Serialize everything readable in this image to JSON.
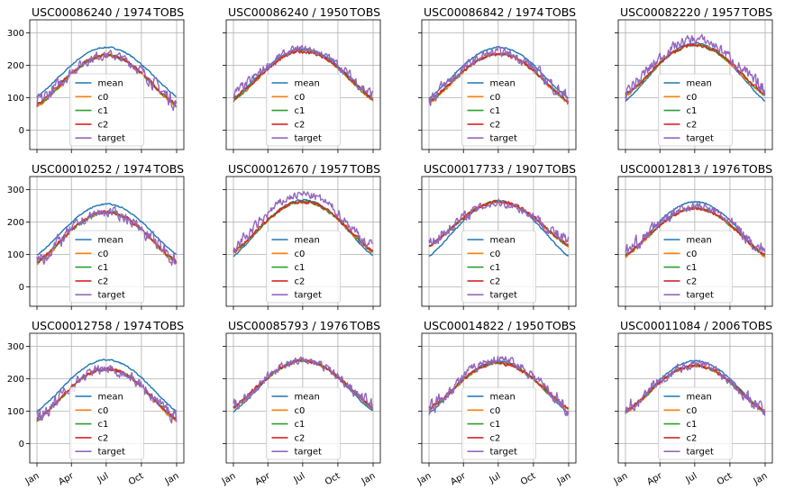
{
  "figure": {
    "rows": 3,
    "cols": 4,
    "legend_location": "lower center",
    "grid": true,
    "sharex": true,
    "sharey": true
  },
  "chart_data": [
    {
      "type": "line",
      "station": "USC00086240",
      "year": "1974",
      "element": "TOBS",
      "x_ticks": [
        "Jan",
        "Apr",
        "Jul",
        "Oct",
        "Jan"
      ],
      "yticks": [
        "0",
        "100",
        "200",
        "300"
      ],
      "ylim": [
        -60,
        340
      ],
      "legend": [
        "mean",
        "c0",
        "c1",
        "c2",
        "target"
      ],
      "series": [
        {
          "name": "mean",
          "color": "#1f77b4",
          "peak": 255,
          "trough": 95,
          "noise": 3
        },
        {
          "name": "c0",
          "color": "#ff7f0e",
          "peak": 230,
          "trough": 62,
          "noise": 7
        },
        {
          "name": "c1",
          "color": "#2ca02c",
          "peak": 230,
          "trough": 65,
          "noise": 7
        },
        {
          "name": "c2",
          "color": "#d62728",
          "peak": 230,
          "trough": 68,
          "noise": 8
        },
        {
          "name": "target",
          "color": "#9467bd",
          "peak": 232,
          "trough": 75,
          "noise": 40
        }
      ]
    },
    {
      "type": "line",
      "station": "USC00086240",
      "year": "1950",
      "element": "TOBS",
      "x_ticks": [
        "Jan",
        "Apr",
        "Jul",
        "Oct",
        "Jan"
      ],
      "yticks": [
        "0",
        "100",
        "200",
        "300"
      ],
      "ylim": [
        -60,
        340
      ],
      "legend": [
        "mean",
        "c0",
        "c1",
        "c2",
        "target"
      ],
      "series": [
        {
          "name": "mean",
          "color": "#1f77b4",
          "peak": 250,
          "trough": 90,
          "noise": 3
        },
        {
          "name": "c0",
          "color": "#ff7f0e",
          "peak": 245,
          "trough": 80,
          "noise": 6
        },
        {
          "name": "c1",
          "color": "#2ca02c",
          "peak": 245,
          "trough": 85,
          "noise": 6
        },
        {
          "name": "c2",
          "color": "#d62728",
          "peak": 242,
          "trough": 88,
          "noise": 8
        },
        {
          "name": "target",
          "color": "#9467bd",
          "peak": 250,
          "trough": 100,
          "noise": 32
        }
      ]
    },
    {
      "type": "line",
      "station": "USC00086842",
      "year": "1974",
      "element": "TOBS",
      "x_ticks": [
        "Jan",
        "Apr",
        "Jul",
        "Oct",
        "Jan"
      ],
      "yticks": [
        "0",
        "100",
        "200",
        "300"
      ],
      "ylim": [
        -60,
        340
      ],
      "legend": [
        "mean",
        "c0",
        "c1",
        "c2",
        "target"
      ],
      "series": [
        {
          "name": "mean",
          "color": "#1f77b4",
          "peak": 255,
          "trough": 90,
          "noise": 3
        },
        {
          "name": "c0",
          "color": "#ff7f0e",
          "peak": 235,
          "trough": 75,
          "noise": 6
        },
        {
          "name": "c1",
          "color": "#2ca02c",
          "peak": 235,
          "trough": 78,
          "noise": 6
        },
        {
          "name": "c2",
          "color": "#d62728",
          "peak": 235,
          "trough": 80,
          "noise": 8
        },
        {
          "name": "target",
          "color": "#9467bd",
          "peak": 240,
          "trough": 90,
          "noise": 38
        }
      ]
    },
    {
      "type": "line",
      "station": "USC00082220",
      "year": "1957",
      "element": "TOBS",
      "x_ticks": [
        "Jan",
        "Apr",
        "Jul",
        "Oct",
        "Jan"
      ],
      "yticks": [
        "0",
        "100",
        "200",
        "300"
      ],
      "ylim": [
        -60,
        340
      ],
      "legend": [
        "mean",
        "c0",
        "c1",
        "c2",
        "target"
      ],
      "series": [
        {
          "name": "mean",
          "color": "#1f77b4",
          "peak": 268,
          "trough": 80,
          "noise": 3
        },
        {
          "name": "c0",
          "color": "#ff7f0e",
          "peak": 262,
          "trough": 95,
          "noise": 6
        },
        {
          "name": "c1",
          "color": "#2ca02c",
          "peak": 262,
          "trough": 98,
          "noise": 6
        },
        {
          "name": "c2",
          "color": "#d62728",
          "peak": 262,
          "trough": 100,
          "noise": 8
        },
        {
          "name": "target",
          "color": "#9467bd",
          "peak": 280,
          "trough": 110,
          "noise": 40
        }
      ]
    },
    {
      "type": "line",
      "station": "USC00010252",
      "year": "1974",
      "element": "TOBS",
      "x_ticks": [
        "Jan",
        "Apr",
        "Jul",
        "Oct",
        "Jan"
      ],
      "yticks": [
        "0",
        "100",
        "200",
        "300"
      ],
      "ylim": [
        -60,
        340
      ],
      "legend": [
        "mean",
        "c0",
        "c1",
        "c2",
        "target"
      ],
      "series": [
        {
          "name": "mean",
          "color": "#1f77b4",
          "peak": 255,
          "trough": 90,
          "noise": 3
        },
        {
          "name": "c0",
          "color": "#ff7f0e",
          "peak": 230,
          "trough": 62,
          "noise": 7
        },
        {
          "name": "c1",
          "color": "#2ca02c",
          "peak": 230,
          "trough": 65,
          "noise": 7
        },
        {
          "name": "c2",
          "color": "#d62728",
          "peak": 230,
          "trough": 68,
          "noise": 8
        },
        {
          "name": "target",
          "color": "#9467bd",
          "peak": 230,
          "trough": 70,
          "noise": 42
        }
      ]
    },
    {
      "type": "line",
      "station": "USC00012670",
      "year": "1957",
      "element": "TOBS",
      "x_ticks": [
        "Jan",
        "Apr",
        "Jul",
        "Oct",
        "Jan"
      ],
      "yticks": [
        "0",
        "100",
        "200",
        "300"
      ],
      "ylim": [
        -60,
        340
      ],
      "legend": [
        "mean",
        "c0",
        "c1",
        "c2",
        "target"
      ],
      "series": [
        {
          "name": "mean",
          "color": "#1f77b4",
          "peak": 268,
          "trough": 85,
          "noise": 3
        },
        {
          "name": "c0",
          "color": "#ff7f0e",
          "peak": 262,
          "trough": 95,
          "noise": 6
        },
        {
          "name": "c1",
          "color": "#2ca02c",
          "peak": 262,
          "trough": 98,
          "noise": 6
        },
        {
          "name": "c2",
          "color": "#d62728",
          "peak": 262,
          "trough": 100,
          "noise": 8
        },
        {
          "name": "target",
          "color": "#9467bd",
          "peak": 285,
          "trough": 110,
          "noise": 34
        }
      ]
    },
    {
      "type": "line",
      "station": "USC00017733",
      "year": "1907",
      "element": "TOBS",
      "x_ticks": [
        "Jan",
        "Apr",
        "Jul",
        "Oct",
        "Jan"
      ],
      "yticks": [
        "0",
        "100",
        "200",
        "300"
      ],
      "ylim": [
        -60,
        340
      ],
      "legend": [
        "mean",
        "c0",
        "c1",
        "c2",
        "target"
      ],
      "series": [
        {
          "name": "mean",
          "color": "#1f77b4",
          "peak": 265,
          "trough": 85,
          "noise": 3
        },
        {
          "name": "c0",
          "color": "#ff7f0e",
          "peak": 262,
          "trough": 115,
          "noise": 6
        },
        {
          "name": "c1",
          "color": "#2ca02c",
          "peak": 262,
          "trough": 118,
          "noise": 6
        },
        {
          "name": "c2",
          "color": "#d62728",
          "peak": 262,
          "trough": 120,
          "noise": 8
        },
        {
          "name": "target",
          "color": "#9467bd",
          "peak": 258,
          "trough": 130,
          "noise": 36
        }
      ]
    },
    {
      "type": "line",
      "station": "USC00012813",
      "year": "1976",
      "element": "TOBS",
      "x_ticks": [
        "Jan",
        "Apr",
        "Jul",
        "Oct",
        "Jan"
      ],
      "yticks": [
        "0",
        "100",
        "200",
        "300"
      ],
      "ylim": [
        -60,
        340
      ],
      "legend": [
        "mean",
        "c0",
        "c1",
        "c2",
        "target"
      ],
      "series": [
        {
          "name": "mean",
          "color": "#1f77b4",
          "peak": 262,
          "trough": 85,
          "noise": 3
        },
        {
          "name": "c0",
          "color": "#ff7f0e",
          "peak": 242,
          "trough": 85,
          "noise": 6
        },
        {
          "name": "c1",
          "color": "#2ca02c",
          "peak": 242,
          "trough": 88,
          "noise": 6
        },
        {
          "name": "c2",
          "color": "#d62728",
          "peak": 242,
          "trough": 90,
          "noise": 8
        },
        {
          "name": "target",
          "color": "#9467bd",
          "peak": 248,
          "trough": 100,
          "noise": 38
        }
      ]
    },
    {
      "type": "line",
      "station": "USC00012758",
      "year": "1974",
      "element": "TOBS",
      "x_ticks": [
        "Jan",
        "Apr",
        "Jul",
        "Oct",
        "Jan"
      ],
      "yticks": [
        "0",
        "100",
        "200",
        "300"
      ],
      "ylim": [
        -60,
        340
      ],
      "legend": [
        "mean",
        "c0",
        "c1",
        "c2",
        "target"
      ],
      "series": [
        {
          "name": "mean",
          "color": "#1f77b4",
          "peak": 258,
          "trough": 90,
          "noise": 3
        },
        {
          "name": "c0",
          "color": "#ff7f0e",
          "peak": 230,
          "trough": 60,
          "noise": 7
        },
        {
          "name": "c1",
          "color": "#2ca02c",
          "peak": 230,
          "trough": 63,
          "noise": 7
        },
        {
          "name": "c2",
          "color": "#d62728",
          "peak": 230,
          "trough": 66,
          "noise": 8
        },
        {
          "name": "target",
          "color": "#9467bd",
          "peak": 230,
          "trough": 70,
          "noise": 42
        }
      ]
    },
    {
      "type": "line",
      "station": "USC00085793",
      "year": "1976",
      "element": "TOBS",
      "x_ticks": [
        "Jan",
        "Apr",
        "Jul",
        "Oct",
        "Jan"
      ],
      "yticks": [
        "0",
        "100",
        "200",
        "300"
      ],
      "ylim": [
        -60,
        340
      ],
      "legend": [
        "mean",
        "c0",
        "c1",
        "c2",
        "target"
      ],
      "series": [
        {
          "name": "mean",
          "color": "#1f77b4",
          "peak": 258,
          "trough": 90,
          "noise": 3
        },
        {
          "name": "c0",
          "color": "#ff7f0e",
          "peak": 255,
          "trough": 100,
          "noise": 6
        },
        {
          "name": "c1",
          "color": "#2ca02c",
          "peak": 255,
          "trough": 103,
          "noise": 6
        },
        {
          "name": "c2",
          "color": "#d62728",
          "peak": 255,
          "trough": 105,
          "noise": 8
        },
        {
          "name": "target",
          "color": "#9467bd",
          "peak": 255,
          "trough": 110,
          "noise": 32
        }
      ]
    },
    {
      "type": "line",
      "station": "USC00014822",
      "year": "1950",
      "element": "TOBS",
      "x_ticks": [
        "Jan",
        "Apr",
        "Jul",
        "Oct",
        "Jan"
      ],
      "yticks": [
        "0",
        "100",
        "200",
        "300"
      ],
      "ylim": [
        -60,
        340
      ],
      "legend": [
        "mean",
        "c0",
        "c1",
        "c2",
        "target"
      ],
      "series": [
        {
          "name": "mean",
          "color": "#1f77b4",
          "peak": 255,
          "trough": 85,
          "noise": 3
        },
        {
          "name": "c0",
          "color": "#ff7f0e",
          "peak": 248,
          "trough": 95,
          "noise": 6
        },
        {
          "name": "c1",
          "color": "#2ca02c",
          "peak": 248,
          "trough": 98,
          "noise": 6
        },
        {
          "name": "c2",
          "color": "#d62728",
          "peak": 248,
          "trough": 100,
          "noise": 8
        },
        {
          "name": "target",
          "color": "#9467bd",
          "peak": 260,
          "trough": 100,
          "noise": 40
        }
      ]
    },
    {
      "type": "line",
      "station": "USC00011084",
      "year": "2006",
      "element": "TOBS",
      "x_ticks": [
        "Jan",
        "Apr",
        "Jul",
        "Oct",
        "Jan"
      ],
      "yticks": [
        "0",
        "100",
        "200",
        "300"
      ],
      "ylim": [
        -60,
        340
      ],
      "legend": [
        "mean",
        "c0",
        "c1",
        "c2",
        "target"
      ],
      "series": [
        {
          "name": "mean",
          "color": "#1f77b4",
          "peak": 255,
          "trough": 85,
          "noise": 3
        },
        {
          "name": "c0",
          "color": "#ff7f0e",
          "peak": 240,
          "trough": 85,
          "noise": 6
        },
        {
          "name": "c1",
          "color": "#2ca02c",
          "peak": 240,
          "trough": 88,
          "noise": 6
        },
        {
          "name": "c2",
          "color": "#d62728",
          "peak": 240,
          "trough": 90,
          "noise": 8
        },
        {
          "name": "target",
          "color": "#9467bd",
          "peak": 245,
          "trough": 95,
          "noise": 40
        }
      ]
    }
  ]
}
